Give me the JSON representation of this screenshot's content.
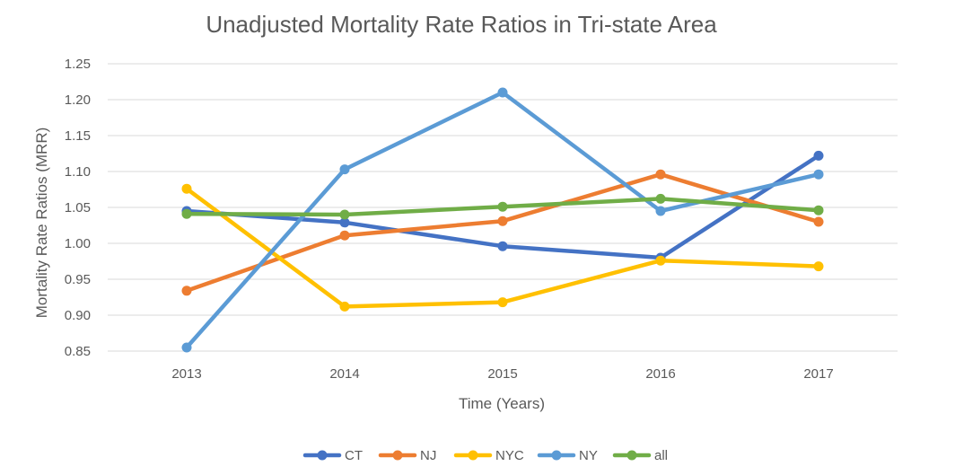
{
  "chart_data": {
    "type": "line",
    "title": "Unadjusted Mortality Rate Ratios in Tri-state Area",
    "xlabel": "Time (Years)",
    "ylabel": "Mortality Rate Ratios (MRR)",
    "categories": [
      "2013",
      "2014",
      "2015",
      "2016",
      "2017"
    ],
    "ylim": [
      0.85,
      1.25
    ],
    "yticks": [
      "0.85",
      "0.90",
      "0.95",
      "1.00",
      "1.05",
      "1.10",
      "1.15",
      "1.20",
      "1.25"
    ],
    "grid": true,
    "legend_position": "bottom",
    "series": [
      {
        "name": "CT",
        "color": "#4472C4",
        "values": [
          1.045,
          1.029,
          0.996,
          0.98,
          1.122
        ]
      },
      {
        "name": "NJ",
        "color": "#ED7D31",
        "values": [
          0.934,
          1.011,
          1.031,
          1.096,
          1.03
        ]
      },
      {
        "name": "NYC",
        "color": "#FFC000",
        "values": [
          1.076,
          0.912,
          0.918,
          0.976,
          0.968
        ]
      },
      {
        "name": "NY",
        "color": "#5B9BD5",
        "values": [
          0.855,
          1.103,
          1.21,
          1.045,
          1.096
        ]
      },
      {
        "name": "all",
        "color": "#70AD47",
        "values": [
          1.041,
          1.04,
          1.051,
          1.062,
          1.046
        ]
      }
    ]
  }
}
